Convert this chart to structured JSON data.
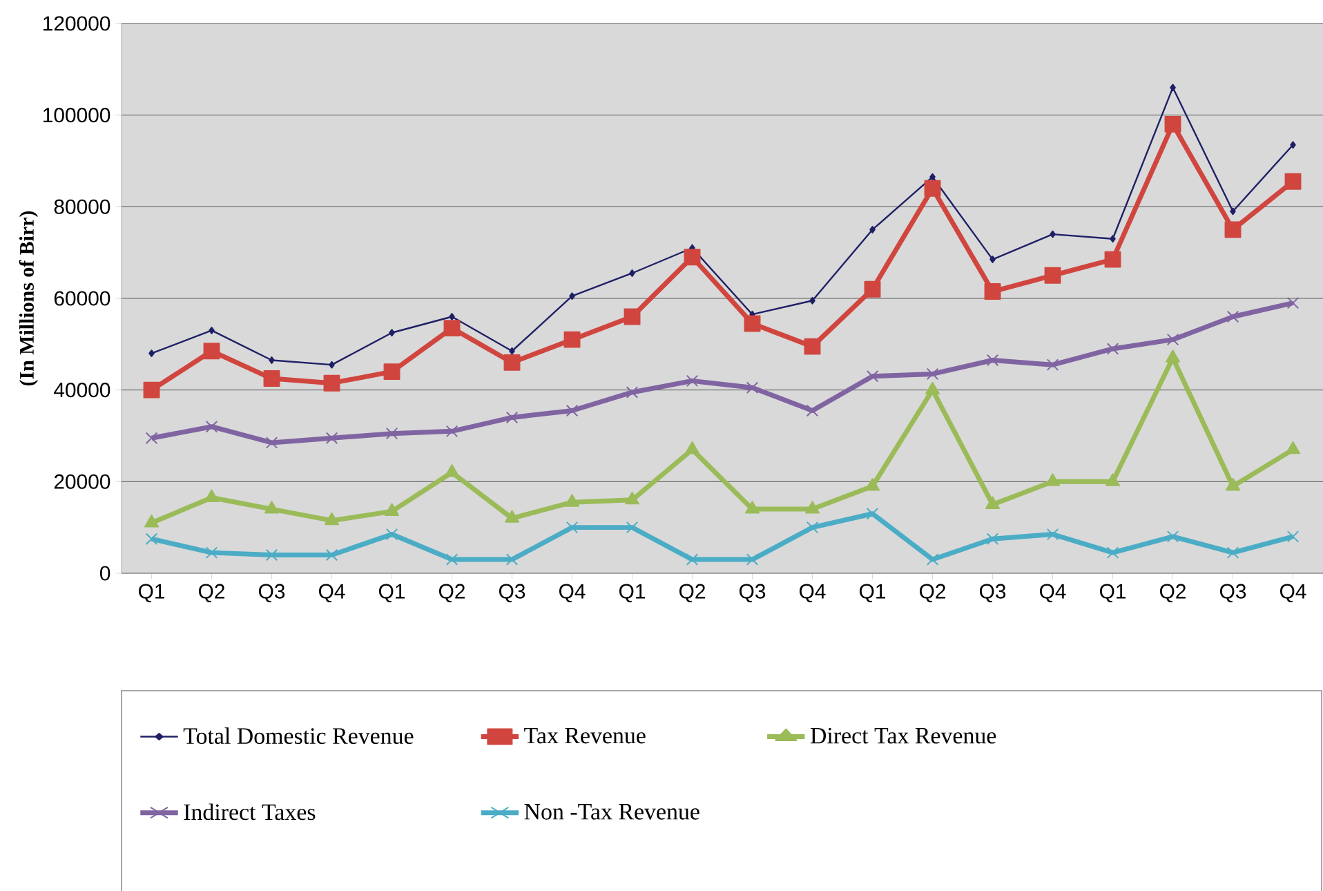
{
  "chart_data": {
    "type": "line",
    "ylabel": "(In Millions of Birr)",
    "categories": [
      "Q1",
      "Q2",
      "Q3",
      "Q4",
      "Q1",
      "Q2",
      "Q3",
      "Q4",
      "Q1",
      "Q2",
      "Q3",
      "Q4",
      "Q1",
      "Q2",
      "Q3",
      "Q4",
      "Q1",
      "Q2",
      "Q3",
      "Q4"
    ],
    "series": [
      {
        "name": "Total Domestic Revenue",
        "color": "#1f1f66",
        "marker": "diamond",
        "values": [
          48000,
          53000,
          46500,
          45500,
          52500,
          56000,
          48500,
          60500,
          65500,
          71000,
          56500,
          59500,
          75000,
          86500,
          68500,
          74000,
          73000,
          106000,
          79000,
          93500
        ]
      },
      {
        "name": "Tax Revenue",
        "color": "#d0463f",
        "marker": "square",
        "values": [
          40000,
          48500,
          42500,
          41500,
          44000,
          53500,
          46000,
          51000,
          56000,
          69000,
          54500,
          49500,
          62000,
          84000,
          61500,
          65000,
          68500,
          98000,
          75000,
          85500
        ]
      },
      {
        "name": "Direct Tax Revenue",
        "color": "#9bbb59",
        "marker": "triangle",
        "values": [
          11000,
          16500,
          14000,
          11500,
          13500,
          22000,
          12000,
          15500,
          16000,
          27000,
          14000,
          14000,
          19000,
          40000,
          15000,
          20000,
          20000,
          47000,
          19000,
          27000
        ]
      },
      {
        "name": "Indirect Taxes",
        "color": "#8064a2",
        "marker": "cross",
        "values": [
          29500,
          32000,
          28500,
          29500,
          30500,
          31000,
          34000,
          35500,
          39500,
          42000,
          40500,
          35500,
          43000,
          43500,
          46500,
          45500,
          49000,
          51000,
          56000,
          59000
        ]
      },
      {
        "name": "Non -Tax Revenue",
        "color": "#4bacc6",
        "marker": "cross",
        "values": [
          7500,
          4500,
          4000,
          4000,
          8500,
          3000,
          3000,
          10000,
          10000,
          3000,
          3000,
          10000,
          13000,
          3000,
          7500,
          8500,
          4500,
          8000,
          4500,
          8000
        ]
      }
    ],
    "ylim": [
      0,
      120000
    ],
    "yticks": [
      0,
      20000,
      40000,
      60000,
      80000,
      100000,
      120000
    ],
    "grid": "y",
    "legend": "bottom",
    "line_style": "solid"
  }
}
